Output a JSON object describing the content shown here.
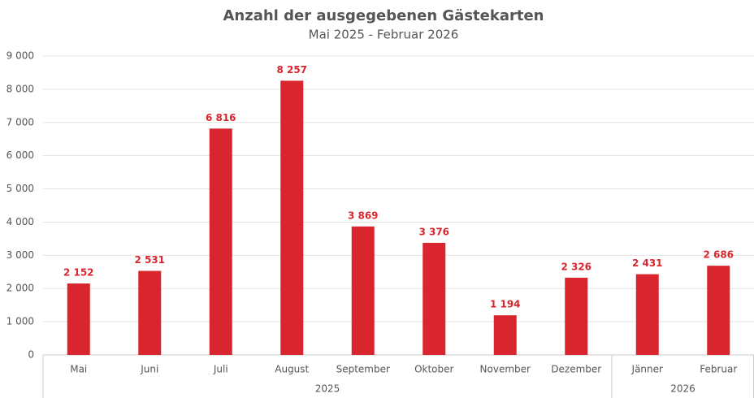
{
  "chart_data": {
    "type": "bar",
    "title": "Anzahl der ausgegebenen Gästekarten",
    "subtitle": "Mai 2025 - Februar 2026",
    "categories": [
      "Mai",
      "Juni",
      "Juli",
      "August",
      "September",
      "Oktober",
      "November",
      "Dezember",
      "Jänner",
      "Februar"
    ],
    "category_groups": [
      "2025",
      "2025",
      "2025",
      "2025",
      "2025",
      "2025",
      "2025",
      "2025",
      "2026",
      "2026"
    ],
    "values": [
      2152,
      2531,
      6816,
      8257,
      3869,
      3376,
      1194,
      2326,
      2431,
      2686
    ],
    "value_labels": [
      "2 152",
      "2 531",
      "6 816",
      "8 257",
      "3 869",
      "3 376",
      "1 194",
      "2 326",
      "2 431",
      "2 686"
    ],
    "color": "#d9262e",
    "ylim": [
      0,
      9000
    ],
    "yticks": [
      0,
      {
        "value": 1000,
        "label": "1 000"
      },
      {
        "value": 2000,
        "label": "2 000"
      },
      {
        "value": 3000,
        "label": "3 000"
      },
      {
        "value": 4000,
        "label": "4 000"
      },
      {
        "value": 5000,
        "label": "5 000"
      },
      {
        "value": 6000,
        "label": "6 000"
      },
      {
        "value": 7000,
        "label": "7 000"
      },
      {
        "value": 8000,
        "label": "8 000"
      },
      {
        "value": 9000,
        "label": "9 000"
      }
    ],
    "grid": true
  }
}
